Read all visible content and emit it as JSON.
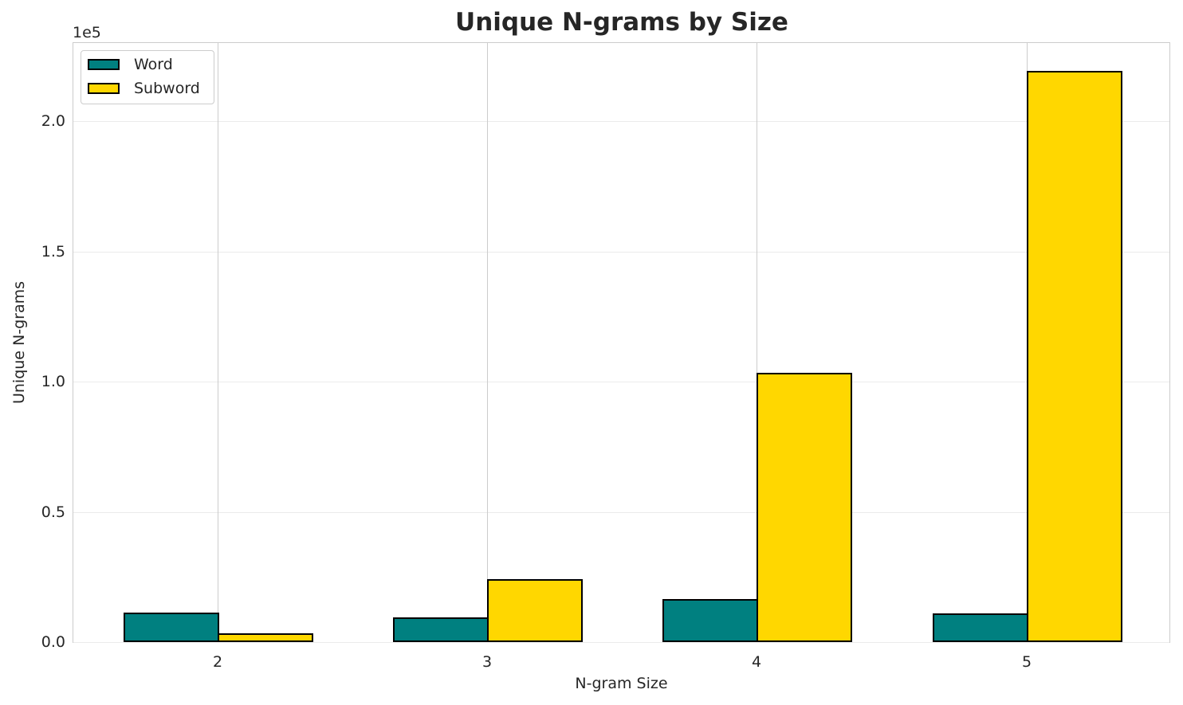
{
  "chart_data": {
    "type": "bar",
    "title": "Unique N-grams by Size",
    "xlabel": "N-gram Size",
    "ylabel": "Unique N-grams",
    "y_offset_label": "1e5",
    "categories": [
      "2",
      "3",
      "4",
      "5"
    ],
    "series": [
      {
        "name": "Word",
        "color": "#008080",
        "values": [
          11000,
          9100,
          16200,
          10700
        ]
      },
      {
        "name": "Subword",
        "color": "#FFD700",
        "values": [
          3000,
          24000,
          103000,
          219000
        ]
      }
    ],
    "ylim": [
      0,
      230000
    ],
    "yticks": [
      "0.0",
      "0.5",
      "1.0",
      "1.5",
      "2.0"
    ],
    "ytick_values": [
      0,
      50000,
      100000,
      150000,
      200000
    ],
    "grid": true,
    "legend_position": "upper left"
  },
  "legend": {
    "items": [
      "Word",
      "Subword"
    ]
  }
}
